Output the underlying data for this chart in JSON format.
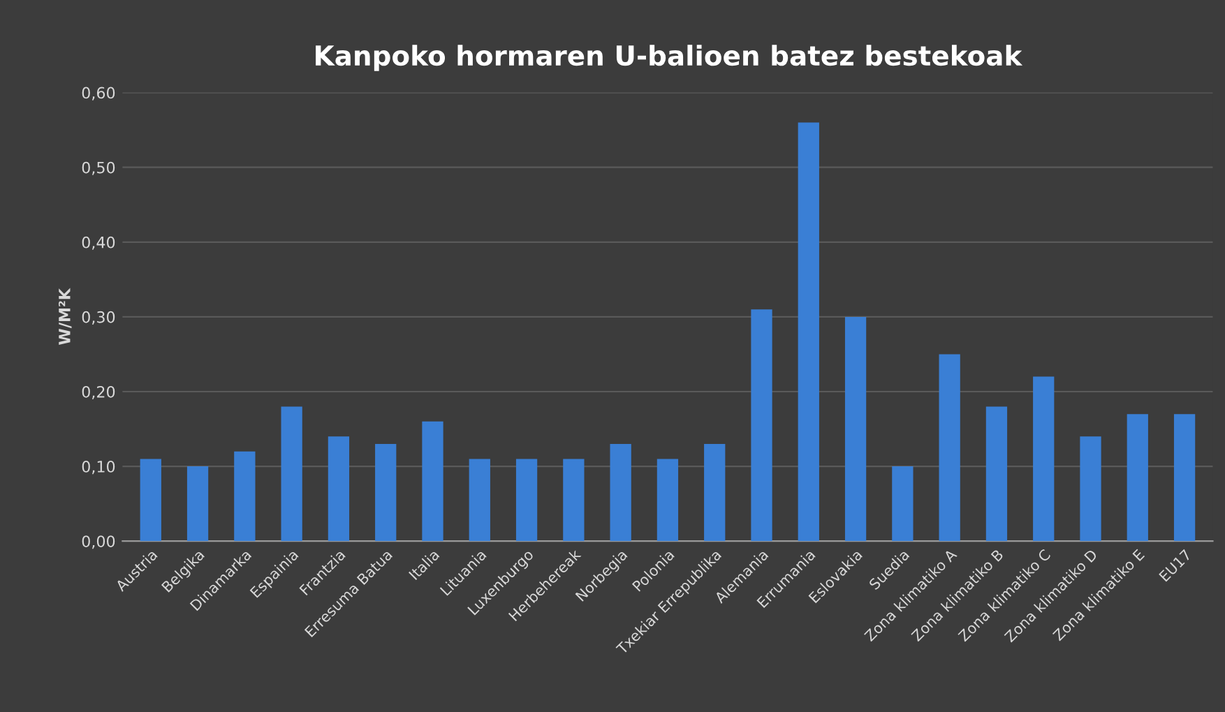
{
  "chart_data": {
    "type": "bar",
    "title": "Kanpoko hormaren U-balioen batez bestekoak",
    "ylabel": "W/M²K",
    "categories": [
      "Austria",
      "Belgika",
      "Dinamarka",
      "Espainia",
      "Frantzia",
      "Erresuma Batua",
      "Italia",
      "Lituania",
      "Luxenburgo",
      "Herbehereak",
      "Norbegia",
      "Polonia",
      "Txekiar Errepublika",
      "Alemania",
      "Errumania",
      "Eslovakia",
      "Suedia",
      "Zona klimatiko A",
      "Zona klimatiko B",
      "Zona klimatiko C",
      "Zona klimatiko D",
      "Zona klimatiko E",
      "EU17"
    ],
    "values": [
      0.11,
      0.1,
      0.12,
      0.18,
      0.14,
      0.13,
      0.16,
      0.11,
      0.11,
      0.11,
      0.13,
      0.11,
      0.13,
      0.31,
      0.56,
      0.3,
      0.1,
      0.25,
      0.18,
      0.22,
      0.14,
      0.17,
      0.17
    ],
    "color": "#3a7fd5",
    "ylim": [
      0,
      0.6
    ],
    "yticks": [
      {
        "value": 0,
        "label": "0,00"
      },
      {
        "value": 0.1,
        "label": "0,10"
      },
      {
        "value": 0.2,
        "label": "0,20"
      },
      {
        "value": 0.3,
        "label": "0,30"
      },
      {
        "value": 0.4,
        "label": "0,40"
      },
      {
        "value": 0.5,
        "label": "0,50"
      },
      {
        "value": 0.6,
        "label": "0,60"
      }
    ],
    "grid": "y",
    "legend": false
  }
}
